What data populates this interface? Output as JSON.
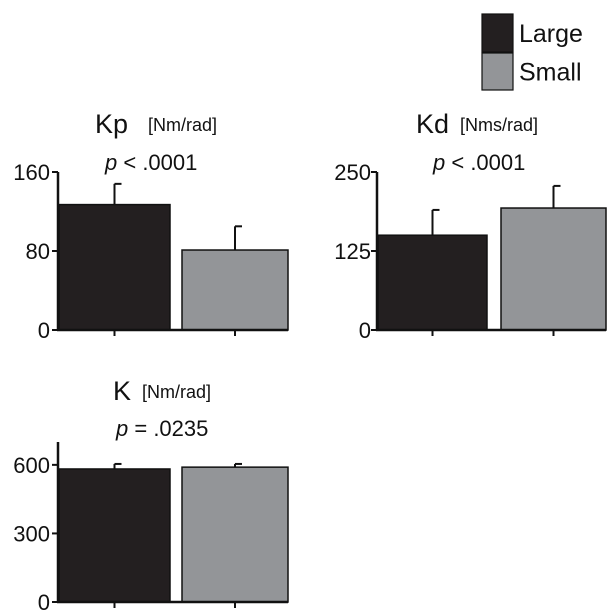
{
  "legend": {
    "placement": "top-right",
    "entries": [
      {
        "label": "Large",
        "color": "#231f20"
      },
      {
        "label": "Small",
        "color": "#939598"
      }
    ]
  },
  "chart_data": [
    {
      "type": "bar",
      "title": "Kp",
      "units": "[Nm/rad]",
      "p_prefix": "p",
      "p_text": " < .0001",
      "categories": [
        "Large",
        "Small"
      ],
      "values": [
        127,
        81
      ],
      "errors": [
        21,
        24
      ],
      "colors": [
        "#231f20",
        "#939598"
      ],
      "ylim": [
        0,
        160
      ],
      "yticks": [
        0,
        80,
        160
      ],
      "ytick_labels": [
        "0",
        "80",
        "160"
      ]
    },
    {
      "type": "bar",
      "title": "Kd",
      "units": "[Nms/rad]",
      "p_prefix": "p",
      "p_text": " < .0001",
      "categories": [
        "Large",
        "Small"
      ],
      "values": [
        150,
        193
      ],
      "errors": [
        40,
        35
      ],
      "colors": [
        "#231f20",
        "#939598"
      ],
      "ylim": [
        0,
        250
      ],
      "yticks": [
        0,
        125,
        250
      ],
      "ytick_labels": [
        "0",
        "125",
        "250"
      ]
    },
    {
      "type": "bar",
      "title": "K",
      "units": "[Nm/rad]",
      "p_prefix": "p",
      "p_text": " = .0235",
      "categories": [
        "Large",
        "Small"
      ],
      "values": [
        582,
        590
      ],
      "errors": [
        22,
        14
      ],
      "colors": [
        "#231f20",
        "#939598"
      ],
      "ylim": [
        0,
        700
      ],
      "yticks": [
        0,
        300,
        600
      ],
      "ytick_labels": [
        "0",
        "300",
        "600"
      ]
    }
  ]
}
